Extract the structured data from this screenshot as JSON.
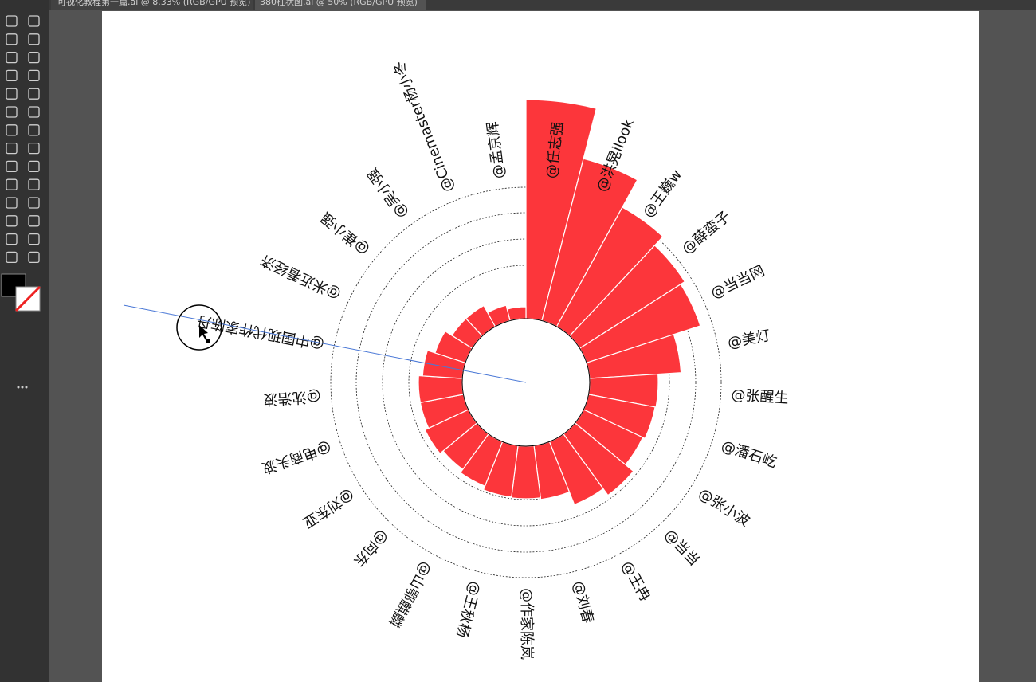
{
  "tabs": [
    "可视化教程第一篇.ai @ 8.33% (RGB/GPU 预览)",
    "380柱状图.ai @ 50% (RGB/GPU 预览)"
  ],
  "chart": {
    "type": "radial-bar",
    "color": "#fc363b",
    "labels": [
      "@任志强",
      "@洪晃ilook",
      "@王巍w",
      "@薛蛮子",
      "@当当网",
      "@美灯",
      "@张醒生",
      "@潘石屹",
      "@张小波",
      "@当当",
      "@王冉",
      "@刘春",
      "@作家陈岚",
      "@王秋杨",
      "@山鄂麒麟",
      "@向东",
      "@刘东亚",
      "@电商头波",
      "@沈浩波",
      "@中国现代作家陈丹",
      "@米近看经济",
      "@崔小强",
      "@吴小强",
      "@Cinemaster杨小冬",
      "@孟京辉"
    ],
    "values": [
      355,
      290,
      251,
      236,
      230,
      195,
      166,
      165,
      162,
      175,
      165,
      148,
      146,
      145,
      140,
      135,
      140,
      135,
      135,
      130,
      120,
      110,
      110,
      100,
      95
    ]
  }
}
